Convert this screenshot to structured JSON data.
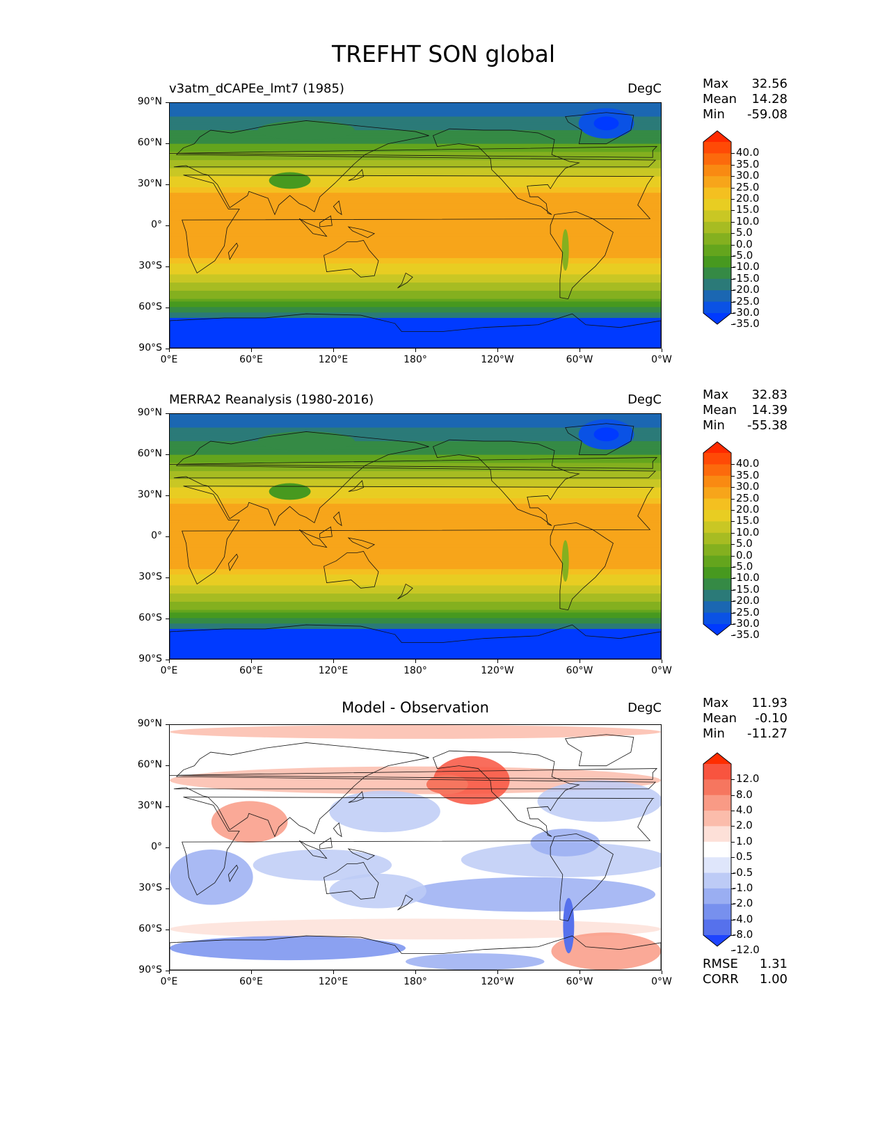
{
  "figure": {
    "title": "TREFHT SON global",
    "lat_labels": [
      "90°N",
      "60°N",
      "30°N",
      "0°",
      "30°S",
      "60°S",
      "90°S"
    ],
    "lon_labels": [
      "0°E",
      "60°E",
      "120°E",
      "180°",
      "120°W",
      "60°W",
      "0°W"
    ]
  },
  "panels": [
    {
      "id": "model",
      "title": "v3atm_dCAPEe_lmt7 (1985)",
      "units": "DegC",
      "stats": [
        {
          "label": "Max",
          "value": "32.56"
        },
        {
          "label": "Mean",
          "value": "14.28"
        },
        {
          "label": "Min",
          "value": "-59.08"
        }
      ],
      "colorbar": {
        "labels": [
          "40.0",
          "35.0",
          "30.0",
          "25.0",
          "20.0",
          "15.0",
          "10.0",
          "5.0",
          "0.0",
          "-5.0",
          "-10.0",
          "-15.0",
          "-20.0",
          "-25.0",
          "-30.0",
          "-35.0"
        ],
        "colors": [
          "#ff2a00",
          "#ff4a06",
          "#fc6a0c",
          "#f98a12",
          "#f7a51a",
          "#f4c020",
          "#e8cd22",
          "#c9c724",
          "#a7bc22",
          "#84b01f",
          "#64a51d",
          "#47991f",
          "#358a45",
          "#2b7a78",
          "#1b67b2",
          "#0a52e5",
          "#003aff"
        ]
      }
    },
    {
      "id": "observation",
      "title": "MERRA2 Reanalysis (1980-2016)",
      "units": "DegC",
      "stats": [
        {
          "label": "Max",
          "value": "32.83"
        },
        {
          "label": "Mean",
          "value": "14.39"
        },
        {
          "label": "Min",
          "value": "-55.38"
        }
      ],
      "colorbar": {
        "labels": [
          "40.0",
          "35.0",
          "30.0",
          "25.0",
          "20.0",
          "15.0",
          "10.0",
          "5.0",
          "0.0",
          "-5.0",
          "-10.0",
          "-15.0",
          "-20.0",
          "-25.0",
          "-30.0",
          "-35.0"
        ],
        "colors": [
          "#ff2a00",
          "#ff4a06",
          "#fc6a0c",
          "#f98a12",
          "#f7a51a",
          "#f4c020",
          "#e8cd22",
          "#c9c724",
          "#a7bc22",
          "#84b01f",
          "#64a51d",
          "#47991f",
          "#358a45",
          "#2b7a78",
          "#1b67b2",
          "#0a52e5",
          "#003aff"
        ]
      }
    },
    {
      "id": "difference",
      "title": "Model - Observation",
      "units": "DegC",
      "stats": [
        {
          "label": "Max",
          "value": "11.93"
        },
        {
          "label": "Mean",
          "value": "-0.10"
        },
        {
          "label": "Min",
          "value": "-11.27"
        }
      ],
      "metrics": [
        {
          "label": "RMSE",
          "value": "1.31"
        },
        {
          "label": "CORR",
          "value": "1.00"
        }
      ],
      "colorbar": {
        "labels": [
          "12.0",
          "8.0",
          "4.0",
          "2.0",
          "1.0",
          "0.5",
          "-0.5",
          "-1.0",
          "-2.0",
          "-4.0",
          "-8.0",
          "-12.0"
        ],
        "colors": [
          "#ff2d00",
          "#f8543f",
          "#f6765f",
          "#f99a85",
          "#fbbcab",
          "#fde0d8",
          "#ffffff",
          "#dfe6fb",
          "#bdcbf6",
          "#9aaef2",
          "#7790ee",
          "#5671ec",
          "#1e44ff"
        ]
      }
    }
  ]
}
